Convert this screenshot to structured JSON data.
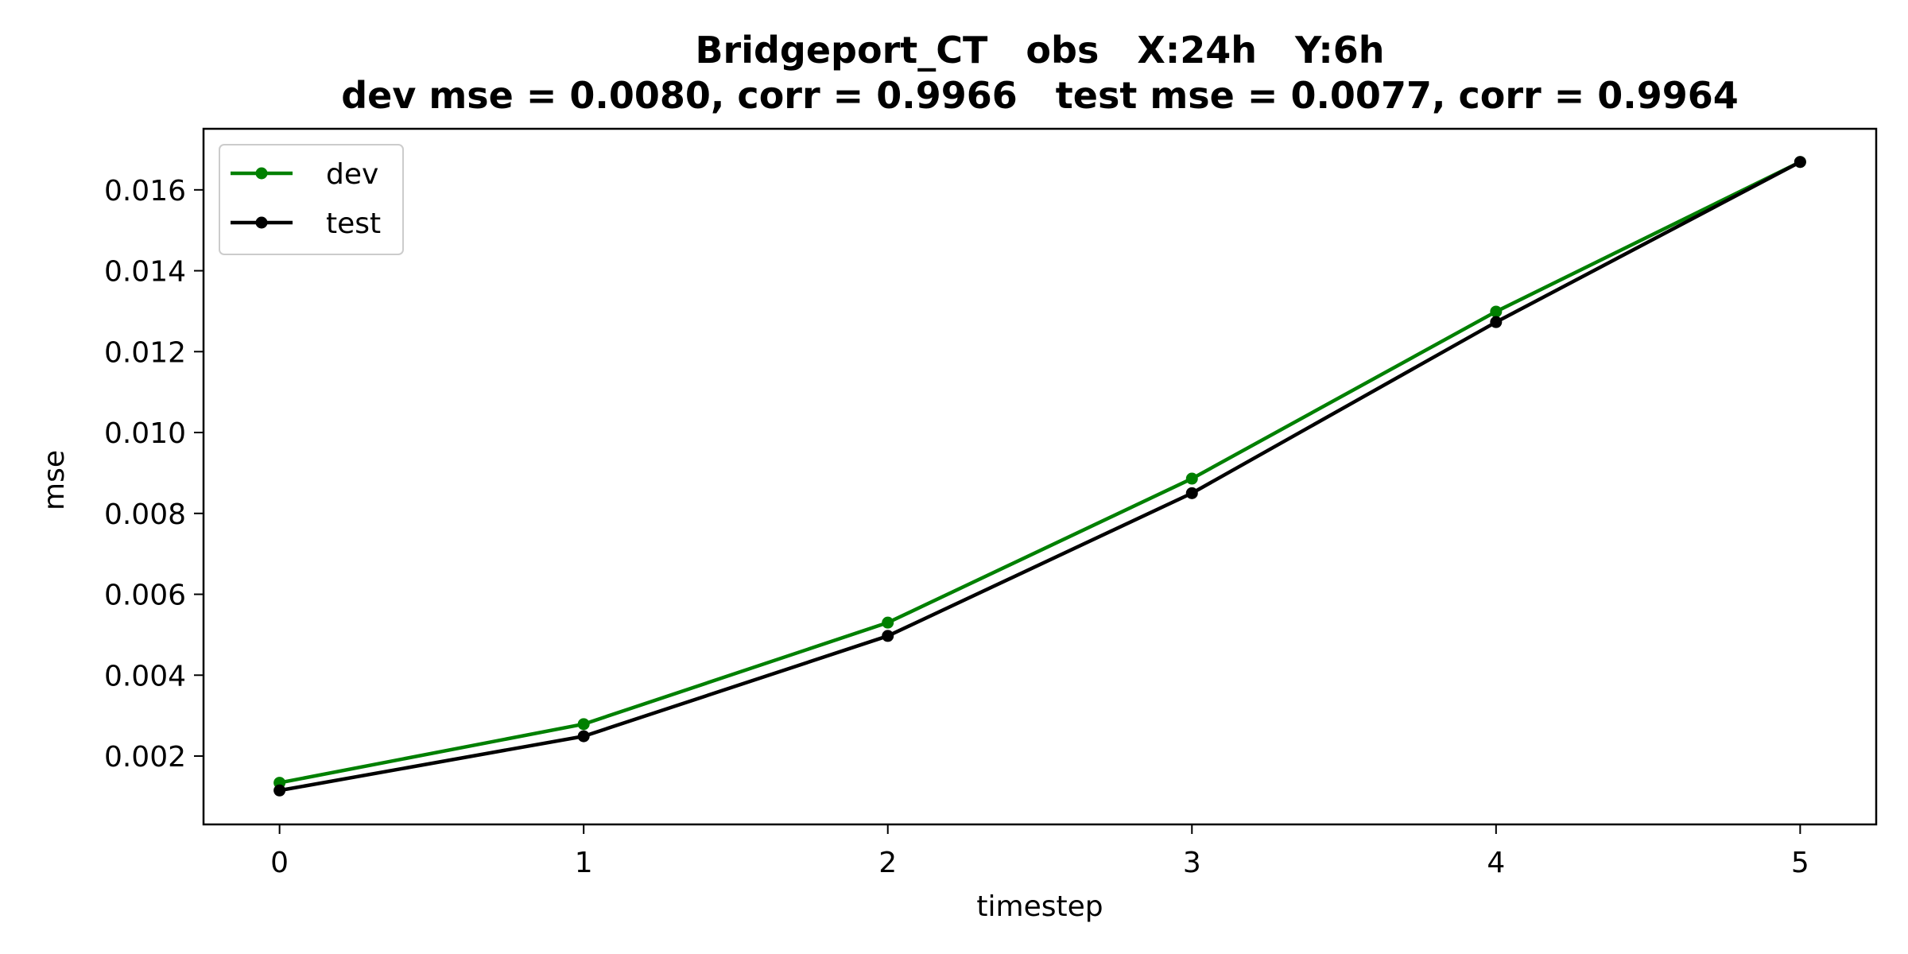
{
  "chart_data": {
    "type": "line",
    "title_line1": "Bridgeport_CT   obs   X:24h   Y:6h",
    "title_line2": "dev mse = 0.0080, corr = 0.9966   test mse = 0.0077, corr = 0.9964",
    "xlabel": "timestep",
    "ylabel": "mse",
    "x": [
      0,
      1,
      2,
      3,
      4,
      5
    ],
    "xlim": [
      -0.25,
      5.25
    ],
    "ylim": [
      0.00031,
      0.01751
    ],
    "xticks": [
      0,
      1,
      2,
      3,
      4,
      5
    ],
    "yticks": [
      0.002,
      0.004,
      0.006,
      0.008,
      0.01,
      0.012,
      0.014,
      0.016
    ],
    "ytick_labels": [
      "0.002",
      "0.004",
      "0.006",
      "0.008",
      "0.010",
      "0.012",
      "0.014",
      "0.016"
    ],
    "grid": false,
    "legend_position": "upper left",
    "series": [
      {
        "name": "dev",
        "color": "#008000",
        "values": [
          0.00134,
          0.00279,
          0.0053,
          0.00886,
          0.01299,
          0.01669
        ]
      },
      {
        "name": "test",
        "color": "#000000",
        "values": [
          0.00115,
          0.00249,
          0.00497,
          0.0085,
          0.01273,
          0.01669
        ]
      }
    ]
  }
}
